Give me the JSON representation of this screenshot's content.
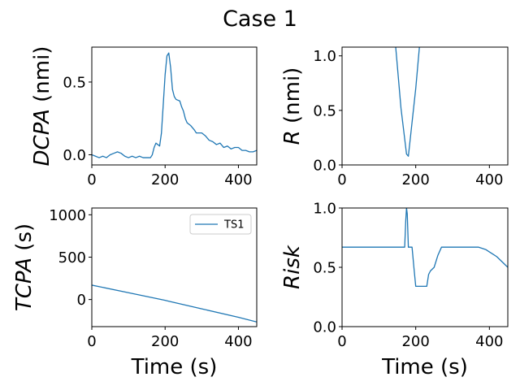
{
  "figure_title": "Case 1",
  "series_color": "#1f77b4",
  "chart_data": [
    {
      "type": "line",
      "ylabel_var": "DCPA",
      "ylabel_unit": " (nmi)",
      "xlabel": "",
      "xlim": [
        0,
        450
      ],
      "ylim": [
        -0.07,
        0.74
      ],
      "xticks": [
        0,
        200,
        400
      ],
      "xtick_labels": [
        "0",
        "200",
        "400"
      ],
      "yticks": [
        0.0,
        0.5
      ],
      "ytick_labels": [
        "0.0",
        "0.5"
      ],
      "legend": null,
      "series": [
        {
          "x": [
            0,
            10,
            20,
            30,
            40,
            50,
            60,
            70,
            80,
            90,
            100,
            110,
            120,
            130,
            140,
            150,
            160,
            165,
            170,
            175,
            180,
            185,
            190,
            195,
            200,
            205,
            210,
            215,
            220,
            225,
            230,
            240,
            245,
            250,
            255,
            260,
            270,
            280,
            285,
            290,
            300,
            310,
            320,
            330,
            340,
            350,
            360,
            370,
            380,
            390,
            400,
            410,
            420,
            430,
            440,
            450
          ],
          "y": [
            0.0,
            -0.01,
            -0.02,
            -0.01,
            -0.02,
            0.0,
            0.01,
            0.02,
            0.01,
            -0.01,
            -0.02,
            -0.01,
            -0.02,
            -0.01,
            -0.02,
            -0.02,
            -0.02,
            0.0,
            0.05,
            0.08,
            0.07,
            0.06,
            0.15,
            0.35,
            0.55,
            0.68,
            0.7,
            0.6,
            0.45,
            0.4,
            0.38,
            0.37,
            0.33,
            0.3,
            0.25,
            0.22,
            0.2,
            0.17,
            0.15,
            0.15,
            0.15,
            0.13,
            0.1,
            0.09,
            0.07,
            0.08,
            0.05,
            0.06,
            0.04,
            0.05,
            0.05,
            0.03,
            0.03,
            0.02,
            0.02,
            0.03
          ]
        }
      ]
    },
    {
      "type": "line",
      "ylabel_var": "R",
      "ylabel_unit": " (nmi)",
      "xlabel": "",
      "xlim": [
        0,
        450
      ],
      "ylim": [
        0.0,
        1.08
      ],
      "xticks": [
        0,
        200,
        400
      ],
      "xtick_labels": [
        "0",
        "200",
        "400"
      ],
      "yticks": [
        0.0,
        0.5,
        1.0
      ],
      "ytick_labels": [
        "0.0",
        "0.5",
        "1.0"
      ],
      "legend": null,
      "series": [
        {
          "x": [
            140,
            160,
            175,
            180,
            200,
            210
          ],
          "y": [
            1.3,
            0.52,
            0.1,
            0.08,
            0.7,
            1.08
          ]
        }
      ]
    },
    {
      "type": "line",
      "ylabel_var": "TCPA",
      "ylabel_unit": " (s)",
      "xlabel": "Time (s)",
      "xlim": [
        0,
        450
      ],
      "ylim": [
        -320,
        1080
      ],
      "xticks": [
        0,
        200,
        400
      ],
      "xtick_labels": [
        "0",
        "200",
        "400"
      ],
      "yticks": [
        0,
        500,
        1000
      ],
      "ytick_labels": [
        "0",
        "500",
        "1000"
      ],
      "legend": "TS1",
      "series": [
        {
          "x": [
            0,
            100,
            180,
            200,
            210,
            300,
            400,
            450
          ],
          "y": [
            170,
            80,
            8,
            -10,
            -20,
            -110,
            -210,
            -265
          ]
        }
      ]
    },
    {
      "type": "line",
      "ylabel_var": "Risk",
      "ylabel_unit": "",
      "xlabel": "Time (s)",
      "xlim": [
        0,
        450
      ],
      "ylim": [
        0.0,
        1.0
      ],
      "xticks": [
        0,
        200,
        400
      ],
      "xtick_labels": [
        "0",
        "200",
        "400"
      ],
      "yticks": [
        0.0,
        0.5,
        1.0
      ],
      "ytick_labels": [
        "0.0",
        "0.5",
        "1.0"
      ],
      "legend": null,
      "series": [
        {
          "x": [
            0,
            170,
            173,
            175,
            177,
            180,
            185,
            190,
            195,
            200,
            230,
            235,
            240,
            250,
            260,
            270,
            280,
            370,
            380,
            390,
            400,
            410,
            420,
            430,
            440,
            450
          ],
          "y": [
            0.67,
            0.67,
            0.9,
            1.0,
            0.95,
            0.67,
            0.67,
            0.67,
            0.5,
            0.34,
            0.34,
            0.44,
            0.47,
            0.5,
            0.6,
            0.67,
            0.67,
            0.67,
            0.66,
            0.65,
            0.63,
            0.61,
            0.59,
            0.56,
            0.53,
            0.5
          ]
        }
      ]
    }
  ]
}
